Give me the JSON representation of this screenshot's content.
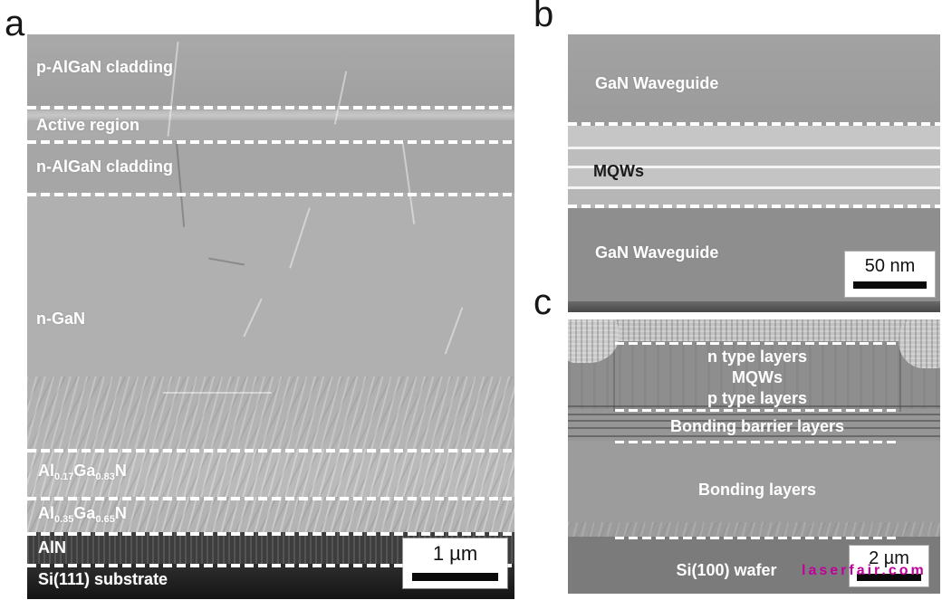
{
  "colors": {
    "watermark": "#c0009b",
    "dashed_line": "#ffffff",
    "layer_label_text": "#ffffff",
    "scale_text": "#111111",
    "panel_tag_text": "#161616"
  },
  "panel_a": {
    "tag": "a",
    "layer_labels": {
      "p_cladding": "p-AlGaN cladding",
      "active": "Active region",
      "n_cladding": "n-AlGaN cladding",
      "n_gan": "n-GaN",
      "algan_17": [
        {
          "t": "Al"
        },
        {
          "t": "0.17",
          "sub": true
        },
        {
          "t": "Ga"
        },
        {
          "t": "0.83",
          "sub": true
        },
        {
          "t": "N"
        }
      ],
      "algan_35": [
        {
          "t": "Al"
        },
        {
          "t": "0.35",
          "sub": true
        },
        {
          "t": "Ga"
        },
        {
          "t": "0.65",
          "sub": true
        },
        {
          "t": "N"
        }
      ],
      "aln": "AlN",
      "substrate": "Si(111) substrate"
    },
    "scale_bar": "1 µm"
  },
  "panel_b": {
    "tag": "b",
    "labels": {
      "top_waveguide": "GaN Waveguide",
      "mqws": "MQWs",
      "bottom_waveguide": "GaN Waveguide"
    },
    "scale_bar": "50 nm"
  },
  "panel_c": {
    "tag": "c",
    "labels": {
      "n_type": "n type layers",
      "mqws": "MQWs",
      "p_type": "p type layers",
      "bonding_barrier": "Bonding barrier layers",
      "bonding": "Bonding layers",
      "wafer": "Si(100) wafer"
    },
    "scale_bar": "2 µm",
    "watermark": "laserfair.com"
  }
}
